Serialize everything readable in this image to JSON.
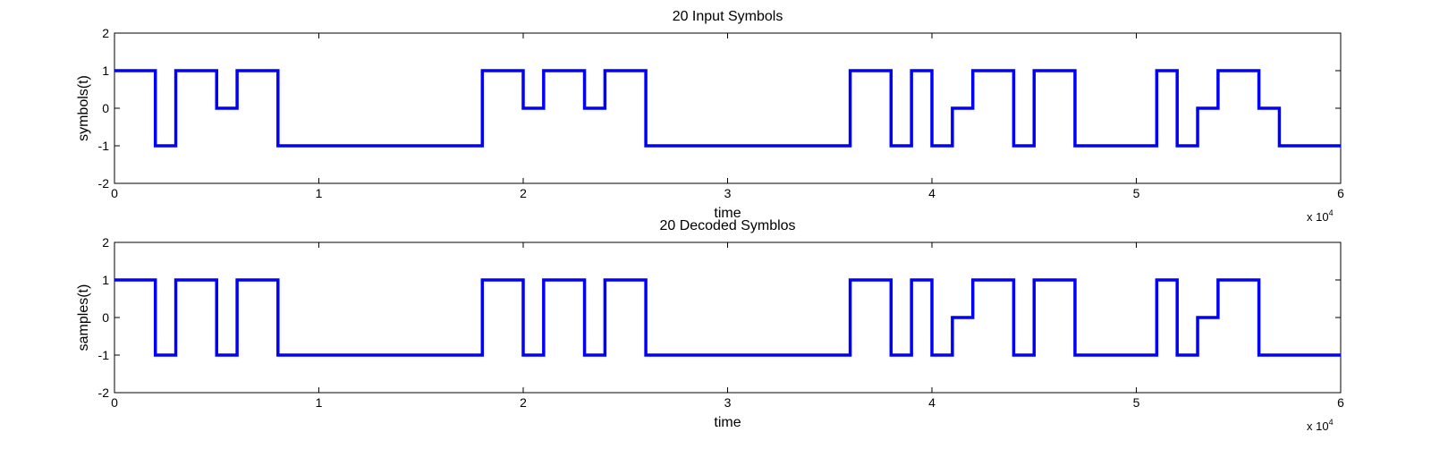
{
  "chart_data": [
    {
      "type": "line",
      "title": "20 Input Symbols",
      "xlabel": "time",
      "ylabel": "symbols(t)",
      "x_exponent_label": "x 10",
      "x_exponent_power": "4",
      "xlim": [
        0,
        60000
      ],
      "ylim": [
        -2,
        2
      ],
      "xticks": [
        0,
        10000,
        20000,
        30000,
        40000,
        50000,
        60000
      ],
      "xtick_labels": [
        "0",
        "1",
        "2",
        "3",
        "4",
        "5",
        "6"
      ],
      "yticks": [
        -2,
        -1,
        0,
        1,
        2
      ],
      "ytick_labels": [
        "-2",
        "-1",
        "0",
        "1",
        "2"
      ],
      "line_color": "#0000ff",
      "series": [
        {
          "x": [
            0,
            2000,
            2000,
            3000,
            3000,
            5000,
            5000,
            6000,
            6000,
            8000,
            8000,
            18000,
            18000,
            20000,
            20000,
            21000,
            21000,
            23000,
            23000,
            24000,
            24000,
            26000,
            26000,
            36000,
            36000,
            38000,
            38000,
            39000,
            39000,
            40000,
            40000,
            41000,
            41000,
            42000,
            42000,
            44000,
            44000,
            45000,
            45000,
            47000,
            47000,
            51000,
            51000,
            52000,
            52000,
            53000,
            53000,
            54000,
            54000,
            56000,
            56000,
            57000,
            57000,
            60000
          ],
          "y": [
            1,
            1,
            -1,
            -1,
            1,
            1,
            0,
            0,
            1,
            1,
            -1,
            -1,
            1,
            1,
            0,
            0,
            1,
            1,
            0,
            0,
            1,
            1,
            -1,
            -1,
            1,
            1,
            -1,
            -1,
            1,
            1,
            -1,
            -1,
            0,
            0,
            1,
            1,
            -1,
            -1,
            1,
            1,
            -1,
            -1,
            1,
            1,
            -1,
            -1,
            0,
            0,
            1,
            1,
            0,
            0,
            -1,
            -1
          ]
        }
      ]
    },
    {
      "type": "line",
      "title": "20 Decoded Symblos",
      "xlabel": "time",
      "ylabel": "samples(t)",
      "x_exponent_label": "x 10",
      "x_exponent_power": "4",
      "xlim": [
        0,
        60000
      ],
      "ylim": [
        -2,
        2
      ],
      "xticks": [
        0,
        10000,
        20000,
        30000,
        40000,
        50000,
        60000
      ],
      "xtick_labels": [
        "0",
        "1",
        "2",
        "3",
        "4",
        "5",
        "6"
      ],
      "yticks": [
        -2,
        -1,
        0,
        1,
        2
      ],
      "ytick_labels": [
        "-2",
        "-1",
        "0",
        "1",
        "2"
      ],
      "line_color": "#0000ff",
      "series": [
        {
          "x": [
            0,
            2000,
            2000,
            3000,
            3000,
            5000,
            5000,
            6000,
            6000,
            8000,
            8000,
            18000,
            18000,
            20000,
            20000,
            21000,
            21000,
            23000,
            23000,
            24000,
            24000,
            26000,
            26000,
            36000,
            36000,
            38000,
            38000,
            39000,
            39000,
            40000,
            40000,
            41000,
            41000,
            42000,
            42000,
            44000,
            44000,
            45000,
            45000,
            47000,
            47000,
            51000,
            51000,
            52000,
            52000,
            53000,
            53000,
            54000,
            54000,
            56000,
            56000,
            60000
          ],
          "y": [
            1,
            1,
            -1,
            -1,
            1,
            1,
            -1,
            -1,
            1,
            1,
            -1,
            -1,
            1,
            1,
            -1,
            -1,
            1,
            1,
            -1,
            -1,
            1,
            1,
            -1,
            -1,
            1,
            1,
            -1,
            -1,
            1,
            1,
            -1,
            -1,
            0,
            0,
            1,
            1,
            -1,
            -1,
            1,
            1,
            -1,
            -1,
            1,
            1,
            -1,
            -1,
            0,
            0,
            1,
            1,
            -1,
            -1
          ]
        }
      ]
    }
  ]
}
